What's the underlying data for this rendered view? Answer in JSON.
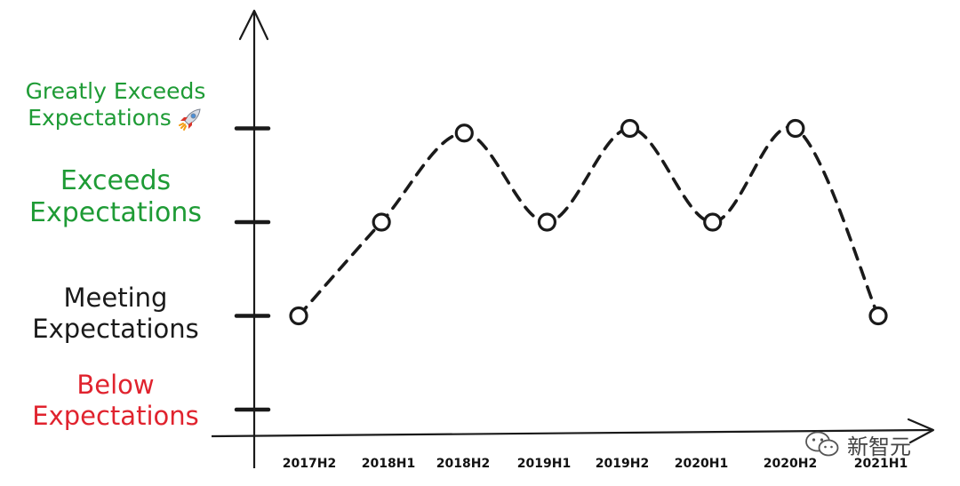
{
  "chart_data": {
    "type": "line",
    "title": "",
    "xlabel": "",
    "ylabel": "",
    "categories": [
      "2017H2",
      "2018H1",
      "2018H2",
      "2019H1",
      "2019H2",
      "2020H1",
      "2020H2",
      "2021H1"
    ],
    "values": [
      1,
      2,
      2.95,
      2,
      3,
      2,
      3,
      1
    ],
    "ylim": [
      0,
      3
    ],
    "levels": [
      {
        "value": 3,
        "line1": "Greatly Exceeds",
        "line2": "Expectations",
        "color": "#1e9b35",
        "icon": "rocket-icon"
      },
      {
        "value": 2,
        "line1": "Exceeds",
        "line2": "Expectations",
        "color": "#1e9b35"
      },
      {
        "value": 1,
        "line1": "Meeting",
        "line2": "Expectations",
        "color": "#1a1a1a"
      },
      {
        "value": 0,
        "line1": "Below",
        "line2": "Expectations",
        "color": "#e0232e"
      }
    ],
    "grid": false,
    "line_style": "dashed",
    "marker": "circle",
    "line_color": "#1a1a1a"
  },
  "watermark": {
    "text": "新智元",
    "icon": "wechat-icon"
  }
}
